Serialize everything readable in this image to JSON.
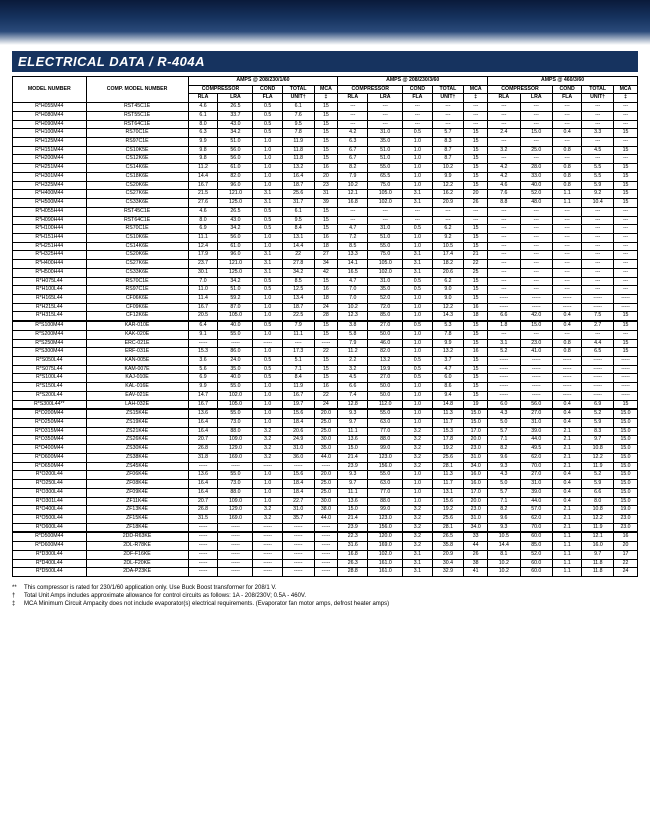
{
  "title": "ELECTRICAL DATA / R-404A",
  "header": {
    "model": "MODEL NUMBER",
    "comp": "COMP. MODEL NUMBER",
    "group1": "AMPS @ 208/230/1/60",
    "group2": "AMPS @ 208/230/3/60",
    "group3": "AMPS @ 460/3/60",
    "compressor": "COMPRESSOR",
    "cond": "COND",
    "total": "TOTAL",
    "mca": "MCA",
    "rla": "RLA",
    "lra": "LRA",
    "fla": "FLA",
    "unitt": "UNIT†",
    "ddag": "‡"
  },
  "rows": [
    [
      "R*H055M44",
      "RST45C1E",
      "4.6",
      "26.5",
      "0.5",
      "6.1",
      "15",
      "---",
      "---",
      "---",
      "---",
      "---",
      "---",
      "---",
      "---",
      "---",
      "---"
    ],
    [
      "R*H080M44",
      "RST55C1E",
      "6.1",
      "33.7",
      "0.5",
      "7.6",
      "15",
      "---",
      "---",
      "---",
      "---",
      "---",
      "---",
      "---",
      "---",
      "---",
      "---"
    ],
    [
      "R*H090M44",
      "RST64C1E",
      "8.0",
      "43.0",
      "0.5",
      "9.5",
      "15",
      "---",
      "---",
      "---",
      "---",
      "---",
      "---",
      "---",
      "---",
      "---",
      "---"
    ],
    [
      "R*H100M44",
      "RS70C1E",
      "6.3",
      "34.2",
      "0.5",
      "7.8",
      "15",
      "4.2",
      "31.0",
      "0.5",
      "5.7",
      "15",
      "2.4",
      "15.0",
      "0.4",
      "3.3",
      "15"
    ],
    [
      "R*H125M44",
      "RS97C1E",
      "9.9",
      "51.0",
      "1.0",
      "11.9",
      "15",
      "6.3",
      "35.0",
      "1.0",
      "8.3",
      "15",
      "---",
      "---",
      "---",
      "---",
      "---"
    ],
    [
      "R*H151M44",
      "CS10K5E",
      "9.8",
      "56.0",
      "1.0",
      "11.8",
      "15",
      "6.7",
      "51.0",
      "1.0",
      "8.7",
      "15",
      "3.2",
      "25.0",
      "0.8",
      "4.5",
      "15"
    ],
    [
      "R*H200M44",
      "CS12K6E",
      "9.8",
      "56.0",
      "1.0",
      "11.8",
      "15",
      "6.7",
      "51.0",
      "1.0",
      "8.7",
      "15",
      "---",
      "---",
      "---",
      "---",
      "---"
    ],
    [
      "R*H251M44",
      "CS14K6E",
      "11.2",
      "61.0",
      "1.0",
      "13.2",
      "16",
      "8.2",
      "55.0",
      "1.0",
      "10.2",
      "15",
      "4.2",
      "28.0",
      "0.8",
      "5.5",
      "15"
    ],
    [
      "R*H301M44",
      "CS18K6E",
      "14.4",
      "82.0",
      "1.0",
      "16.4",
      "20",
      "7.9",
      "65.5",
      "1.0",
      "9.9",
      "15",
      "4.2",
      "33.0",
      "0.8",
      "5.5",
      "15"
    ],
    [
      "R*H325M44",
      "CS20K6E",
      "16.7",
      "96.0",
      "1.0",
      "18.7",
      "23",
      "10.2",
      "75.0",
      "1.0",
      "12.2",
      "15",
      "4.6",
      "40.0",
      "0.8",
      "5.9",
      "15"
    ],
    [
      "R*H400M44",
      "CS27K6E",
      "21.5",
      "121.0",
      "3.1",
      "25.6",
      "31",
      "12.1",
      "105.0",
      "3.1",
      "16.2",
      "20",
      "7.6",
      "52.0",
      "1.1",
      "9.2",
      "15"
    ],
    [
      "R*H500M44",
      "CS33K6E",
      "27.6",
      "125.0",
      "3.1",
      "31.7",
      "39",
      "16.8",
      "102.0",
      "3.1",
      "20.9",
      "26",
      "8.8",
      "48.0",
      "1.1",
      "10.4",
      "15"
    ],
    [
      "R*H055H44",
      "RST45C1E",
      "4.6",
      "26.5",
      "0.5",
      "6.1",
      "15",
      "---",
      "---",
      "---",
      "---",
      "---",
      "---",
      "---",
      "---",
      "---",
      "---"
    ],
    [
      "R*H090H44",
      "RST64C1E",
      "8.0",
      "43.0",
      "0.5",
      "9.5",
      "15",
      "---",
      "---",
      "---",
      "---",
      "---",
      "---",
      "---",
      "---",
      "---",
      "---"
    ],
    [
      "R*H100H44",
      "RS70C1E",
      "6.9",
      "34.2",
      "0.5",
      "8.4",
      "15",
      "4.7",
      "31.0",
      "0.5",
      "6.2",
      "15",
      "---",
      "---",
      "---",
      "---",
      "---"
    ],
    [
      "R*H151H44",
      "CS10K6E",
      "11.1",
      "56.0",
      "1.0",
      "13.1",
      "16",
      "7.2",
      "51.0",
      "1.0",
      "9.2",
      "15",
      "---",
      "---",
      "---",
      "---",
      "---"
    ],
    [
      "R*H251H44",
      "CS14K6E",
      "12.4",
      "61.0",
      "1.0",
      "14.4",
      "18",
      "8.5",
      "55.0",
      "1.0",
      "10.5",
      "15",
      "---",
      "---",
      "---",
      "---",
      "---"
    ],
    [
      "R*H325H44",
      "CS20K6E",
      "17.9",
      "96.0",
      "3.1",
      "22",
      "27",
      "13.3",
      "75.0",
      "3.1",
      "17.4",
      "21",
      "---",
      "---",
      "---",
      "---",
      "---"
    ],
    [
      "R*H400H44",
      "CS27K6E",
      "23.7",
      "121.0",
      "3.1",
      "27.8",
      "34",
      "14.1",
      "105.0",
      "3.1",
      "18.2",
      "22",
      "---",
      "---",
      "---",
      "---",
      "---"
    ],
    [
      "R*H500H44",
      "CS33K6E",
      "30.1",
      "125.0",
      "3.1",
      "34.2",
      "42",
      "16.5",
      "102.0",
      "3.1",
      "20.6",
      "25",
      "---",
      "---",
      "---",
      "---",
      "---"
    ],
    [
      "R*H075L44",
      "RS70C1E",
      "7.0",
      "34.2",
      "0.5",
      "8.5",
      "15",
      "4.7",
      "31.0",
      "0.5",
      "6.2",
      "15",
      "---",
      "---",
      "---",
      "---",
      "---"
    ],
    [
      "R*H100L44",
      "RS97C1E",
      "11.0",
      "51.0",
      "0.5",
      "12.5",
      "16",
      "7.0",
      "35.0",
      "0.5",
      "9.0",
      "15",
      "---",
      "---",
      "---",
      "---",
      "---"
    ],
    [
      "R*H165L44",
      "CF06K6E",
      "11.4",
      "59.2",
      "1.0",
      "13.4",
      "18",
      "7.0",
      "52.0",
      "1.0",
      "9.0",
      "15",
      "-----",
      "-----",
      "-----",
      "-----",
      "-----"
    ],
    [
      "R*H215L44",
      "CF09K6E",
      "16.7",
      "87.0",
      "1.0",
      "18.7",
      "24",
      "10.2",
      "72.0",
      "1.0",
      "12.2",
      "16",
      "-----",
      "-----",
      "-----",
      "-----",
      "-----"
    ],
    [
      "R*H315L44",
      "CF12K6E",
      "20.5",
      "105.0",
      "1.0",
      "22.5",
      "28",
      "12.3",
      "85.0",
      "1.0",
      "14.3",
      "18",
      "6.6",
      "42.0",
      "0.4",
      "7.5",
      "15"
    ]
  ],
  "rows2": [
    [
      "R*S100M44",
      "KAR-010E",
      "6.4",
      "40.0",
      "0.5",
      "7.9",
      "15",
      "3.8",
      "27.0",
      "0.5",
      "5.3",
      "15",
      "1.8",
      "15.0",
      "0.4",
      "2.7",
      "15"
    ],
    [
      "R*S200M44",
      "KAK-020E",
      "9.1",
      "55.0",
      "1.0",
      "11.1",
      "15",
      "5.8",
      "50.0",
      "1.0",
      "7.8",
      "15",
      "---",
      "---",
      "---",
      "---",
      "---"
    ],
    [
      "R*S250M44",
      "ERC-021E",
      "-----",
      "-----",
      "-----",
      "----",
      "-----",
      "7.9",
      "46.0",
      "1.0",
      "9.9",
      "15",
      "3.1",
      "23.0",
      "0.8",
      "4.4",
      "15"
    ],
    [
      "R*S300M44",
      "ERF-031E",
      "15.3",
      "86.0",
      "1.0",
      "17.3",
      "22",
      "11.2",
      "82.0",
      "1.0",
      "13.2",
      "16",
      "5.2",
      "41.0",
      "0.8",
      "6.5",
      "15"
    ],
    [
      "R*S050L44",
      "KAN-005E",
      "3.6",
      "24.0",
      "0.5",
      "5.1",
      "15",
      "2.2",
      "13.2",
      "0.5",
      "3.7",
      "15",
      "-----",
      "-----",
      "-----",
      "-----",
      "-----"
    ],
    [
      "R*S075L44",
      "KAM-007E",
      "5.6",
      "35.0",
      "0.5",
      "7.1",
      "15",
      "3.2",
      "19.9",
      "0.5",
      "4.7",
      "15",
      "-----",
      "-----",
      "-----",
      "-----",
      "-----"
    ],
    [
      "R*S100L44",
      "KAJ-010E",
      "6.9",
      "40.0",
      "0.5",
      "8.4",
      "15",
      "4.5",
      "27.0",
      "0.5",
      "6.0",
      "15",
      "-----",
      "-----",
      "-----",
      "-----",
      "-----"
    ],
    [
      "R*S150L44",
      "KAL-016E",
      "9.9",
      "55.0",
      "1.0",
      "11.9",
      "16",
      "6.6",
      "50.0",
      "1.0",
      "8.6",
      "15",
      "-----",
      "-----",
      "-----",
      "-----",
      "-----"
    ],
    [
      "R*S200L44",
      "EAV-021E",
      "14.7",
      "102.0",
      "1.0",
      "16.7",
      "22",
      "7.4",
      "50.0",
      "1.0",
      "9.4",
      "15",
      "-----",
      "-----",
      "-----",
      "-----",
      "-----"
    ],
    [
      "R*S300L44**",
      "LAH-032E",
      "16.7",
      "105.0",
      "1.0",
      "19.7",
      "24",
      "12.8",
      "112.0",
      "1.0",
      "14.8",
      "19",
      "6.0",
      "56.0",
      "0.4",
      "6.9",
      "15"
    ]
  ],
  "rows3": [
    [
      "R*O200M44",
      "ZS15K4E",
      "13.6",
      "55.0",
      "1.0",
      "15.6",
      "20.0",
      "9.3",
      "55.0",
      "1.0",
      "11.3",
      "15.0",
      "4.3",
      "27.0",
      "0.4",
      "5.2",
      "15.0"
    ],
    [
      "R*O250M44",
      "ZS19K4E",
      "16.4",
      "73.0",
      "1.0",
      "18.4",
      "25.0",
      "9.7",
      "63.0",
      "1.0",
      "11.7",
      "15.0",
      "5.0",
      "31.0",
      "0.4",
      "5.9",
      "15.0"
    ],
    [
      "R*O315M44",
      "ZS21K4E",
      "16.4",
      "88.0",
      "3.2",
      "20.6",
      "25.0",
      "11.1",
      "77.0",
      "3.2",
      "15.3",
      "17.0",
      "5.7",
      "39.0",
      "2.1",
      "8.3",
      "15.0"
    ],
    [
      "R*O350M44",
      "ZS26K4E",
      "20.7",
      "109.0",
      "3.2",
      "24.9",
      "30.0",
      "13.6",
      "88.0",
      "3.2",
      "17.8",
      "20.0",
      "7.1",
      "44.0",
      "2.1",
      "9.7",
      "15.0"
    ],
    [
      "R*O400M44",
      "ZS30K4E",
      "26.8",
      "129.0",
      "3.2",
      "31.0",
      "35.0",
      "15.0",
      "99.0",
      "3.2",
      "19.2",
      "23.0",
      "8.2",
      "49.5",
      "2.1",
      "10.8",
      "15.0"
    ],
    [
      "R*O600M44",
      "ZS38K4E",
      "31.8",
      "169.0",
      "3.2",
      "36.0",
      "44.0",
      "21.4",
      "123.0",
      "3.2",
      "25.6",
      "31.0",
      "9.6",
      "62.0",
      "2.1",
      "12.2",
      "15.0"
    ],
    [
      "R*O650M44",
      "ZS45K4E",
      "-----",
      "-----",
      "-----",
      "-----",
      "-----",
      "23.9",
      "156.0",
      "3.2",
      "28.1",
      "34.0",
      "9.3",
      "70.0",
      "2.1",
      "11.9",
      "15.0"
    ],
    [
      "R*O200L44",
      "ZF06K4E",
      "13.6",
      "55.0",
      "1.0",
      "15.6",
      "20.0",
      "9.3",
      "55.0",
      "1.0",
      "11.3",
      "16.0",
      "4.3",
      "27.0",
      "0.4",
      "5.2",
      "15.0"
    ],
    [
      "R*O250L44",
      "ZF08K4E",
      "16.4",
      "73.0",
      "1.0",
      "18.4",
      "25.0",
      "9.7",
      "63.0",
      "1.0",
      "11.7",
      "16.0",
      "5.0",
      "31.0",
      "0.4",
      "5.9",
      "15.0"
    ],
    [
      "R*O300L44",
      "ZF09K4E",
      "16.4",
      "88.0",
      "1.0",
      "18.4",
      "25.0",
      "11.1",
      "77.0",
      "1.0",
      "13.1",
      "17.0",
      "5.7",
      "39.0",
      "0.4",
      "6.6",
      "15.0"
    ],
    [
      "R*O301L44",
      "ZF11K4E",
      "20.7",
      "109.0",
      "1.0",
      "22.7",
      "30.0",
      "13.6",
      "88.0",
      "1.0",
      "15.6",
      "20.0",
      "7.1",
      "44.0",
      "0.4",
      "8.0",
      "15.0"
    ],
    [
      "R*O400L44",
      "ZF13K4E",
      "26.8",
      "129.0",
      "3.2",
      "31.0",
      "38.0",
      "15.0",
      "99.0",
      "3.2",
      "19.2",
      "23.0",
      "8.2",
      "57.0",
      "2.1",
      "10.8",
      "19.0"
    ],
    [
      "R*O500L44",
      "ZF15K4E",
      "31.5",
      "169.0",
      "3.2",
      "35.7",
      "44.0",
      "21.4",
      "123.0",
      "3.2",
      "25.6",
      "31.0",
      "9.6",
      "62.0",
      "2.1",
      "12.2",
      "23.0"
    ],
    [
      "R*O600L44",
      "ZF18K4E",
      "-----",
      "-----",
      "-----",
      "-----",
      "-----",
      "23.9",
      "156.0",
      "3.2",
      "28.1",
      "34.0",
      "9.3",
      "70.0",
      "2.1",
      "11.9",
      "23.0"
    ]
  ],
  "rows4": [
    [
      "R*D500M44",
      "2DD-R63KE",
      "-----",
      "-----",
      "-----",
      "-----",
      "-----",
      "22.3",
      "120.0",
      "3.2",
      "26.5",
      "33",
      "10.5",
      "60.0",
      "1.1",
      "12.1",
      "16"
    ],
    [
      "R*D600M44",
      "2DL-R78KE",
      "-----",
      "-----",
      "-----",
      "-----",
      "-----",
      "31.6",
      "169.0",
      "3.2",
      "35.8",
      "44",
      "14.4",
      "85.0",
      "1.1",
      "16.0",
      "20"
    ],
    [
      "R*D300L44",
      "2DF-F16KE",
      "-----",
      "-----",
      "-----",
      "-----",
      "-----",
      "16.8",
      "102.0",
      "3.1",
      "20.9",
      "26",
      "8.1",
      "52.0",
      "1.1",
      "9.7",
      "17"
    ],
    [
      "R*D400L44",
      "2DL-F20KE",
      "-----",
      "-----",
      "-----",
      "-----",
      "-----",
      "26.3",
      "161.0",
      "3.1",
      "30.4",
      "38",
      "10.2",
      "60.0",
      "1.1",
      "11.8",
      "22"
    ],
    [
      "R*D500L44",
      "2DA-P23KE",
      "-----",
      "-----",
      "-----",
      "-----",
      "-----",
      "28.8",
      "161.0",
      "3.1",
      "32.9",
      "41",
      "10.2",
      "60.0",
      "1.1",
      "11.8",
      "24"
    ]
  ],
  "footnotes": [
    {
      "sym": "**",
      "txt": "This compressor is rated for 230/1/60 application only.  Use Buck Boost transformer for 208/1 V."
    },
    {
      "sym": "†",
      "txt": "Total Unit Amps includes approximate allowance for control circuits as follows: 1A - 208/230V; 0.5A - 460V."
    },
    {
      "sym": "‡",
      "txt": "MCA Minimum Circuit Ampacity does not include evaporator(s) electrical requirements. (Evaporator fan motor amps, defrost heater amps)"
    }
  ]
}
